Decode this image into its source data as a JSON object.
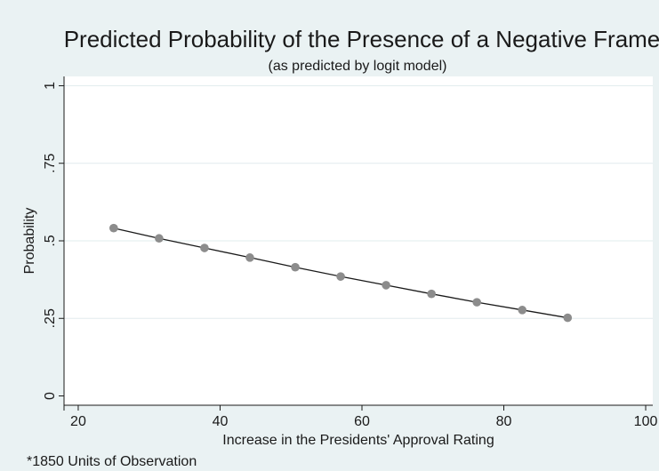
{
  "chart_data": {
    "type": "line",
    "title": "Predicted Probability of the Presence of a Negative Frame",
    "subtitle": "(as predicted by logit model)",
    "xlabel": "Increase in the Presidents' Approval Rating",
    "ylabel": "Probability",
    "note": "*1850 Units of Observation",
    "xlim": [
      18,
      101
    ],
    "ylim": [
      -0.03,
      1.03
    ],
    "x_ticks": [
      {
        "value": 20,
        "label": "20"
      },
      {
        "value": 40,
        "label": "40"
      },
      {
        "value": 60,
        "label": "60"
      },
      {
        "value": 80,
        "label": "80"
      },
      {
        "value": 100,
        "label": "100"
      }
    ],
    "y_ticks": [
      {
        "value": 0,
        "label": "0"
      },
      {
        "value": 0.25,
        "label": ".25"
      },
      {
        "value": 0.5,
        "label": ".5"
      },
      {
        "value": 0.75,
        "label": ".75"
      },
      {
        "value": 1,
        "label": "1"
      }
    ],
    "grid": true,
    "series": [
      {
        "x": [
          25,
          31.4,
          37.8,
          44.2,
          50.6,
          57,
          63.4,
          69.8,
          76.2,
          82.6,
          89
        ],
        "y": [
          0.541,
          0.508,
          0.477,
          0.446,
          0.415,
          0.385,
          0.357,
          0.329,
          0.302,
          0.277,
          0.252
        ]
      }
    ],
    "colors": {
      "background": "#eaf2f3",
      "plot_area": "#ffffff",
      "grid": "#e2ecee",
      "line": "#1a1a1a",
      "marker": "#8c8c8c"
    }
  }
}
